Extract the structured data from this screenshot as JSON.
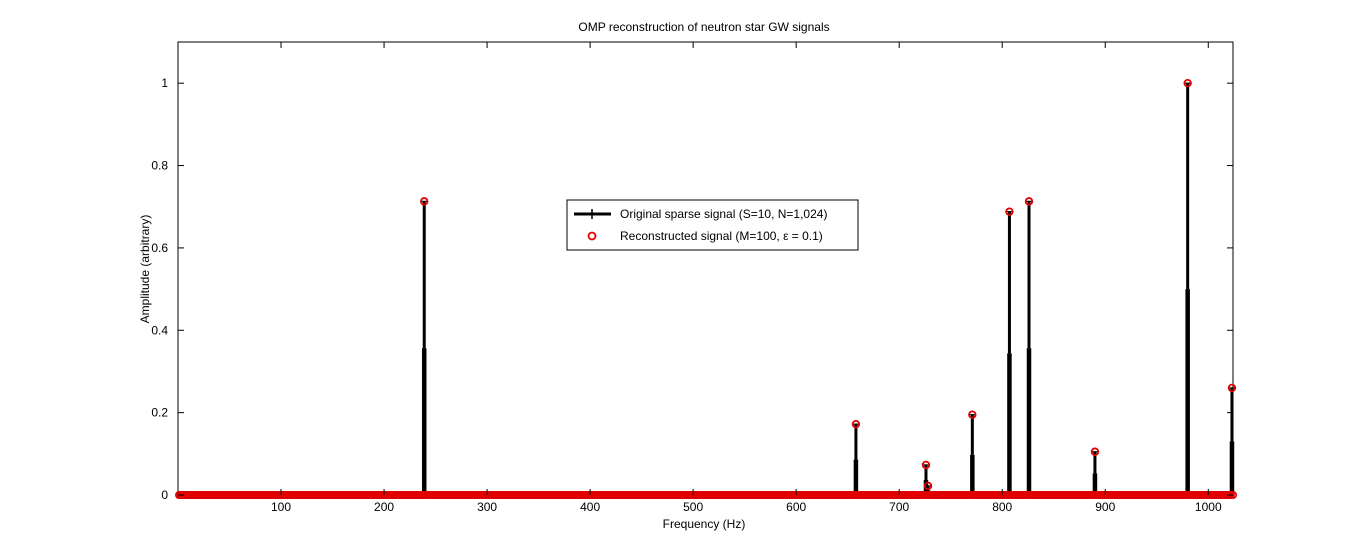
{
  "chart_data": {
    "type": "stem",
    "title": "OMP reconstruction of neutron star GW signals",
    "xlabel": "Frequency (Hz)",
    "ylabel": "Amplitude (arbitrary)",
    "xlim": [
      0,
      1024
    ],
    "ylim": [
      0,
      1.1
    ],
    "xticks": [
      100,
      200,
      300,
      400,
      500,
      600,
      700,
      800,
      900,
      1000
    ],
    "yticks": [
      0,
      0.2,
      0.4,
      0.6,
      0.8,
      1
    ],
    "ytick_labels": [
      "0",
      "0.2",
      "0.4",
      "0.6",
      "0.8",
      "1"
    ],
    "grid": false,
    "legend_position": "center",
    "series": [
      {
        "name": "Original sparse signal (S=10, N=1,024)",
        "style": "stem",
        "color": "#000000",
        "x": [
          239,
          658,
          726,
          728,
          771,
          807,
          826,
          890,
          980,
          1023
        ],
        "y": [
          0.713,
          0.172,
          0.073,
          0.022,
          0.195,
          0.688,
          0.713,
          0.105,
          1.0,
          0.26
        ]
      },
      {
        "name": "Reconstructed signal (M=100, ε = 0.1)",
        "style": "markers",
        "marker": "circle",
        "color": "#e00000",
        "x": [
          239,
          658,
          726,
          728,
          771,
          807,
          826,
          890,
          980,
          1023
        ],
        "y": [
          0.713,
          0.172,
          0.073,
          0.022,
          0.195,
          0.688,
          0.713,
          0.105,
          1.0,
          0.26
        ],
        "zero_elsewhere": true
      }
    ]
  }
}
